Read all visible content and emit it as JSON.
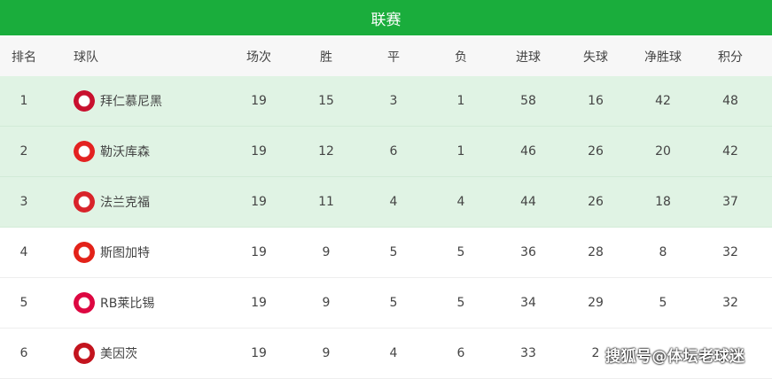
{
  "title": "联赛",
  "columns": [
    "排名",
    "球队",
    "场次",
    "胜",
    "平",
    "负",
    "进球",
    "失球",
    "净胜球",
    "积分"
  ],
  "rows": [
    {
      "rank": "1",
      "team": "拜仁慕尼黑",
      "logo": "bayern-logo",
      "color": "#c8102e",
      "played": "19",
      "won": "15",
      "drawn": "3",
      "lost": "1",
      "gf": "58",
      "ga": "16",
      "gd": "42",
      "pts": "48"
    },
    {
      "rank": "2",
      "team": "勒沃库森",
      "logo": "leverkusen-logo",
      "color": "#e32221",
      "played": "19",
      "won": "12",
      "drawn": "6",
      "lost": "1",
      "gf": "46",
      "ga": "26",
      "gd": "20",
      "pts": "42"
    },
    {
      "rank": "3",
      "team": "法兰克福",
      "logo": "frankfurt-logo",
      "color": "#d8232a",
      "played": "19",
      "won": "11",
      "drawn": "4",
      "lost": "4",
      "gf": "44",
      "ga": "26",
      "gd": "18",
      "pts": "37"
    },
    {
      "rank": "4",
      "team": "斯图加特",
      "logo": "stuttgart-logo",
      "color": "#e32219",
      "played": "19",
      "won": "9",
      "drawn": "5",
      "lost": "5",
      "gf": "36",
      "ga": "28",
      "gd": "8",
      "pts": "32"
    },
    {
      "rank": "5",
      "team": "RB莱比锡",
      "logo": "leipzig-logo",
      "color": "#dd0741",
      "played": "19",
      "won": "9",
      "drawn": "5",
      "lost": "5",
      "gf": "34",
      "ga": "29",
      "gd": "5",
      "pts": "32"
    },
    {
      "rank": "6",
      "team": "美因茨",
      "logo": "mainz-logo",
      "color": "#c3141e",
      "played": "19",
      "won": "9",
      "drawn": "4",
      "lost": "6",
      "gf": "33",
      "ga": "2",
      "gd": "",
      "pts": ""
    }
  ],
  "watermark": "搜狐号@体坛老球迷",
  "colors": {
    "header": "#1aad3c",
    "highlight": "#e0f3e4"
  }
}
